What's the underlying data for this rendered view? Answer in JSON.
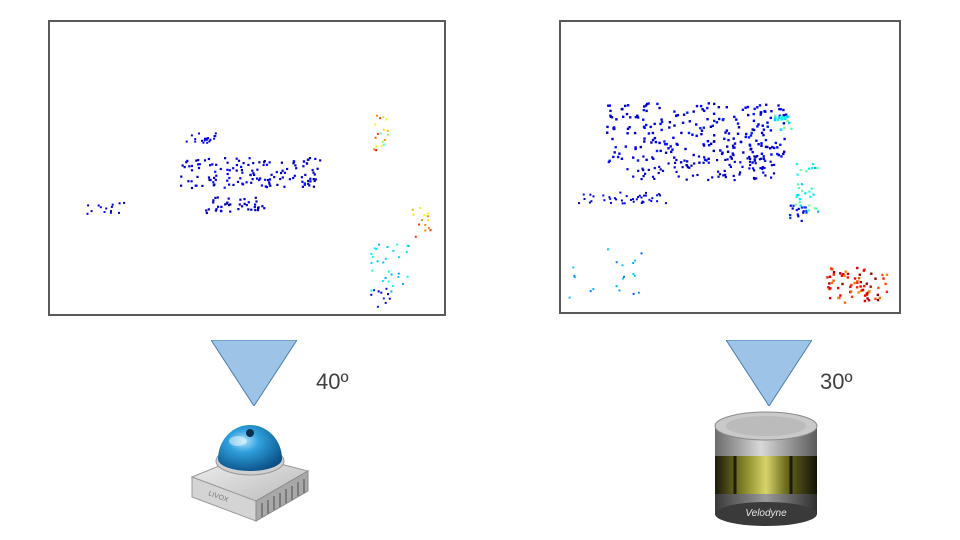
{
  "left": {
    "fov_label": "40º",
    "fov_color": "#9dc3e6",
    "sensor_brand": "LIVOX"
  },
  "right": {
    "fov_label": "30º",
    "fov_color": "#9dc3e6",
    "sensor_brand": "Velodyne"
  },
  "colors": {
    "frame": "#595959",
    "near_points": "#1a2fd6",
    "far_points": "#d42a1a"
  }
}
